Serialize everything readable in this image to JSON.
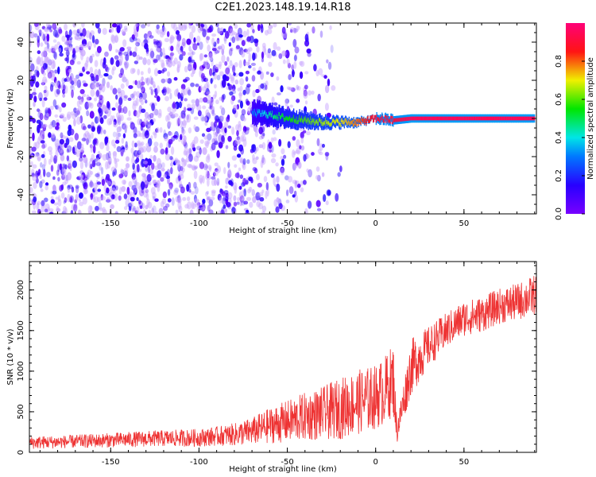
{
  "title": "C2E1.2023.148.19.14.R18",
  "colors": {
    "snr_line": "#ee3333",
    "spectrum_low": "#7700ff",
    "ridge": "#ff3366"
  },
  "chart_data": [
    {
      "type": "heatmap",
      "title": "C2E1.2023.148.19.14.R18",
      "xlabel": "Height of straight line (km)",
      "ylabel": "Frequency (Hz)",
      "xlim": [
        -196,
        91
      ],
      "ylim": [
        -50,
        50
      ],
      "xticks": [
        -150,
        -100,
        -50,
        0,
        50
      ],
      "xtick_labels": [
        "-150",
        "-100",
        "-50",
        "0",
        "50"
      ],
      "yticks": [
        -40,
        -20,
        0,
        20,
        40
      ],
      "ytick_labels": [
        "-40",
        "-20",
        "0",
        "20",
        "40"
      ],
      "colorbar": {
        "label": "Normalized spectral amplitude",
        "range": [
          0,
          1
        ],
        "ticks": [
          0.0,
          0.2,
          0.4,
          0.6,
          0.8
        ],
        "tick_labels": [
          "0.0",
          "0.2",
          "0.4",
          "0.6",
          "0.8"
        ],
        "colormap": "hsv-like (violet-blue-cyan-green-yellow-red-magenta)"
      },
      "ridge": {
        "description": "high-amplitude narrow line near 0 Hz",
        "x": [
          -70,
          -60,
          -50,
          -40,
          -30,
          -20,
          -10,
          0,
          10,
          20,
          50,
          90
        ],
        "freq": [
          3,
          2,
          0,
          -1,
          -2,
          -2,
          -2,
          0,
          -1,
          0,
          0,
          0
        ],
        "amplitude": [
          0.3,
          0.45,
          0.55,
          0.6,
          0.65,
          0.7,
          0.8,
          0.9,
          0.9,
          0.95,
          0.95,
          0.95
        ]
      },
      "noise_region": {
        "x_from": -196,
        "x_to": -15,
        "freq_range": [
          -50,
          50
        ],
        "amplitude": [
          0.05,
          0.3
        ]
      }
    },
    {
      "type": "line",
      "xlabel": "Height of straight line (km)",
      "ylabel": "SNR (10 * v/v)",
      "xlim": [
        -196,
        91
      ],
      "ylim": [
        0,
        2350
      ],
      "xticks": [
        -150,
        -100,
        -50,
        0,
        50
      ],
      "xtick_labels": [
        "-150",
        "-100",
        "-50",
        "0",
        "50"
      ],
      "yticks": [
        0,
        500,
        1000,
        1500,
        2000
      ],
      "ytick_labels": [
        "0",
        "500",
        "1000",
        "1500",
        "2000"
      ],
      "series": [
        {
          "x": [
            -196,
            -175,
            -150,
            -125,
            -100,
            -90,
            -80,
            -70,
            -60,
            -50,
            -40,
            -30,
            -20,
            -10,
            0,
            5,
            10,
            12,
            20,
            30,
            40,
            50,
            60,
            70,
            80,
            91
          ],
          "y": [
            120,
            130,
            150,
            170,
            180,
            200,
            220,
            260,
            330,
            380,
            440,
            480,
            540,
            620,
            680,
            760,
            900,
            250,
            1050,
            1300,
            1500,
            1650,
            1700,
            1800,
            1850,
            1950
          ],
          "noise": [
            80,
            80,
            90,
            100,
            110,
            120,
            140,
            170,
            220,
            260,
            300,
            330,
            380,
            400,
            400,
            420,
            450,
            150,
            350,
            250,
            220,
            220,
            220,
            220,
            230,
            250
          ]
        }
      ]
    }
  ]
}
